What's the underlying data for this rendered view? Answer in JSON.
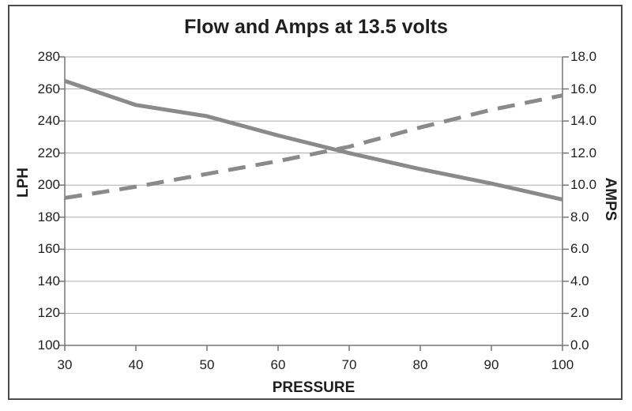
{
  "title": "Flow and Amps at 13.5 volts",
  "chart_data": {
    "type": "line",
    "title": "Flow and Amps at 13.5 volts",
    "xlabel": "PRESSURE",
    "x": [
      30,
      40,
      50,
      60,
      70,
      80,
      90,
      100
    ],
    "x_ticks": [
      "30",
      "40",
      "50",
      "60",
      "70",
      "80",
      "90",
      "100"
    ],
    "left_axis": {
      "label": "LPH",
      "range": [
        100,
        280
      ],
      "ticks": [
        "280",
        "260",
        "240",
        "220",
        "200",
        "180",
        "160",
        "140",
        "120",
        "100"
      ]
    },
    "right_axis": {
      "label": "AMPS",
      "range": [
        0.0,
        18.0
      ],
      "ticks": [
        "18.0",
        "16.0",
        "14.0",
        "12.0",
        "10.0",
        "8.0",
        "6.0",
        "4.0",
        "2.0",
        "0.0"
      ]
    },
    "series": [
      {
        "name": "Flow",
        "axis": "left",
        "style": "solid",
        "values": [
          265,
          250,
          243,
          231,
          220,
          210,
          201,
          191
        ]
      },
      {
        "name": "Amps",
        "axis": "right",
        "style": "dashed",
        "values": [
          9.2,
          9.9,
          10.7,
          11.5,
          12.4,
          13.6,
          14.7,
          15.6
        ]
      }
    ],
    "grid": true,
    "legend": "none",
    "colors": {
      "line": "#8a8a8a",
      "grid": "#ababab",
      "axis": "#757575",
      "text": "#1f1f1f",
      "border": "#4d4d4d",
      "background": "#ffffff"
    }
  }
}
